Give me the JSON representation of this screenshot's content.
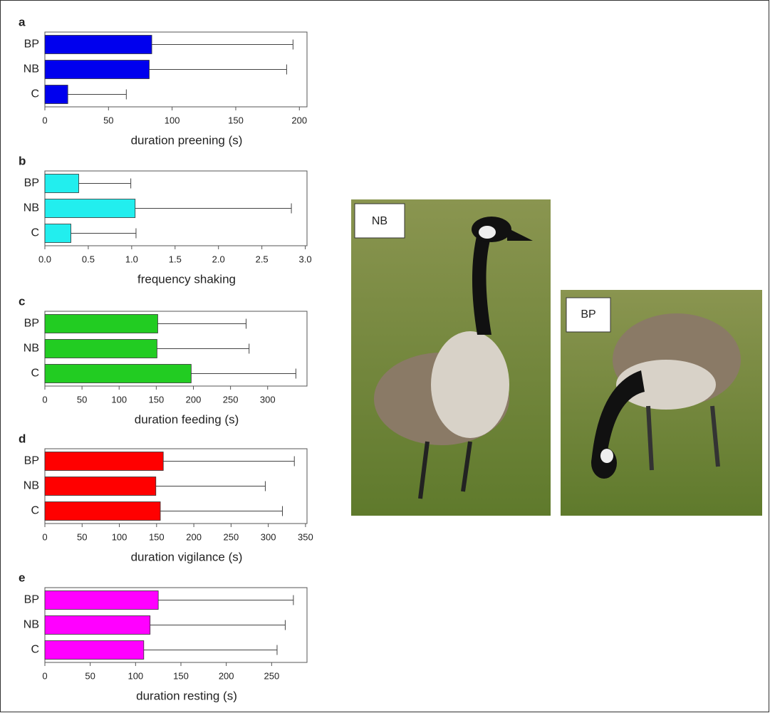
{
  "chart_data": [
    {
      "type": "bar",
      "orientation": "horizontal",
      "title": "a",
      "xlabel": "duration preening (s)",
      "categories": [
        "BP",
        "NB",
        "C"
      ],
      "values": [
        84,
        82,
        18
      ],
      "errors": [
        111,
        108,
        46
      ],
      "color": "#0000ee",
      "xlim": [
        0,
        206
      ],
      "xticks": [
        0,
        50,
        100,
        150,
        200
      ]
    },
    {
      "type": "bar",
      "orientation": "horizontal",
      "title": "b",
      "xlabel": "frequency shaking",
      "categories": [
        "BP",
        "NB",
        "C"
      ],
      "values": [
        0.39,
        1.04,
        0.3
      ],
      "errors": [
        0.6,
        1.8,
        0.75
      ],
      "color": "#22eeee",
      "xlim": [
        0,
        3.02
      ],
      "xticks": [
        {
          "value": 0,
          "label": "0.0"
        },
        0.5,
        {
          "value": 1,
          "label": "1.0"
        },
        1.5,
        {
          "value": 2,
          "label": "2.0"
        },
        2.5,
        {
          "value": 3,
          "label": "3.0"
        }
      ]
    },
    {
      "type": "bar",
      "orientation": "horizontal",
      "title": "c",
      "xlabel": "duration feeding (s)",
      "categories": [
        "BP",
        "NB",
        "C"
      ],
      "values": [
        152,
        151,
        197
      ],
      "errors": [
        119,
        124,
        141
      ],
      "color": "#22cc22",
      "xlim": [
        0,
        353
      ],
      "xticks": [
        0,
        50,
        100,
        150,
        200,
        250,
        300
      ]
    },
    {
      "type": "bar",
      "orientation": "horizontal",
      "title": "d",
      "xlabel": "duration vigilance (s)",
      "categories": [
        "BP",
        "NB",
        "C"
      ],
      "values": [
        159,
        149,
        155
      ],
      "errors": [
        176,
        147,
        164
      ],
      "color": "#ff0000",
      "xlim": [
        0,
        352
      ],
      "xticks": [
        0,
        50,
        100,
        150,
        200,
        250,
        300,
        350
      ]
    },
    {
      "type": "bar",
      "orientation": "horizontal",
      "title": "e",
      "xlabel": "duration resting (s)",
      "categories": [
        "BP",
        "NB",
        "C"
      ],
      "values": [
        125,
        116,
        109
      ],
      "errors": [
        149,
        149,
        147
      ],
      "color": "#ff00ff",
      "xlim": [
        0,
        289
      ],
      "xticks": [
        0,
        50,
        100,
        150,
        200,
        250
      ]
    }
  ],
  "photos": [
    {
      "label": "NB"
    },
    {
      "label": "BP"
    }
  ]
}
